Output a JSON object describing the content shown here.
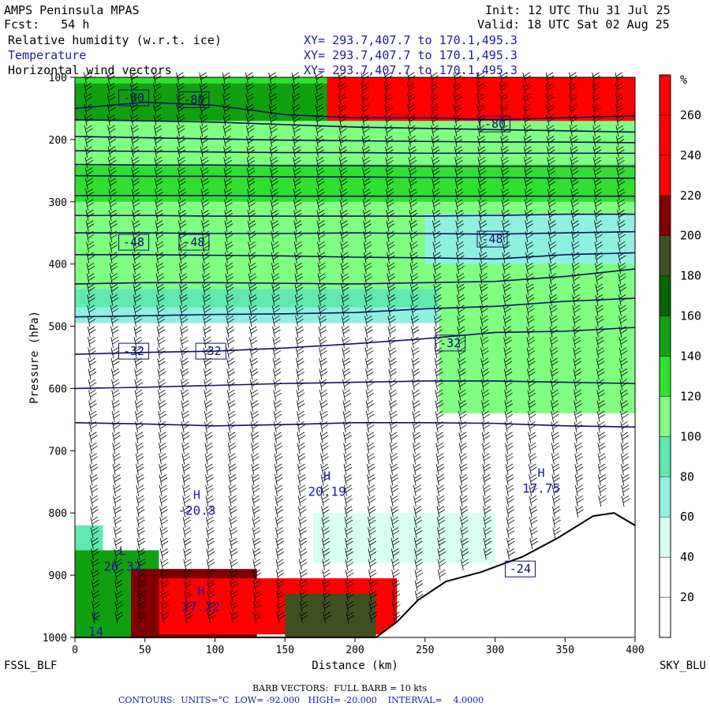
{
  "header": {
    "model": "AMPS Peninsula MPAS",
    "forecast": "Fcst:   54 h",
    "init": "Init: 12 UTC Thu 31 Jul 25",
    "valid": "Valid: 18 UTC Sat 02 Aug 25",
    "fields": [
      {
        "name": "Relative humidity (w.r.t. ice)",
        "xy": "XY= 293.7,407.7 to 170.1,495.3"
      },
      {
        "name": "Temperature",
        "xy": "XY= 293.7,407.7 to 170.1,495.3"
      },
      {
        "name": "Horizontal wind vectors",
        "xy": "XY= 293.7,407.7 to 170.1,495.3"
      }
    ]
  },
  "chart_data": {
    "type": "cross-section",
    "xlabel": "Distance (km)",
    "ylabel": "Pressure (hPa)",
    "xlim": [
      0,
      400
    ],
    "ylim": [
      1000,
      100
    ],
    "x_ticks": [
      0,
      50,
      100,
      150,
      200,
      250,
      300,
      350,
      400
    ],
    "y_ticks": [
      100,
      200,
      300,
      400,
      500,
      600,
      700,
      800,
      900,
      1000
    ],
    "left_endpoint": "FSSL_BLF",
    "right_endpoint": "SKY_BLU",
    "colorbar": {
      "unit": "%",
      "ticks": [
        20,
        40,
        60,
        80,
        100,
        120,
        140,
        160,
        180,
        200,
        220,
        240,
        260
      ],
      "colors": [
        "#ffffff",
        "#ffffff",
        "#d8fff0",
        "#90f0e0",
        "#60e8b0",
        "#80ff80",
        "#30e030",
        "#10a010",
        "#006400",
        "#405020",
        "#800000",
        "#ff0000",
        "#ff0000",
        "#ff0000"
      ]
    },
    "temperature_contours": [
      {
        "value": -80,
        "pressures": [
          150,
          140,
          145,
          160,
          165,
          165,
          168,
          165,
          162
        ]
      },
      {
        "value": -76,
        "pressures": [
          168,
          170,
          172,
          176,
          180,
          182,
          184,
          186,
          188
        ]
      },
      {
        "value": -72,
        "pressures": [
          195,
          197,
          199,
          201,
          202,
          203,
          204,
          204,
          205
        ]
      },
      {
        "value": -68,
        "pressures": [
          218,
          219,
          220,
          221,
          221,
          222,
          222,
          222,
          222
        ]
      },
      {
        "value": -64,
        "pressures": [
          240,
          241,
          241,
          242,
          242,
          243,
          243,
          243,
          243
        ]
      },
      {
        "value": -60,
        "pressures": [
          258,
          259,
          259,
          260,
          260,
          261,
          261,
          262,
          262
        ]
      },
      {
        "value": -56,
        "pressures": [
          290,
          290,
          290,
          291,
          291,
          291,
          291,
          291,
          291
        ]
      },
      {
        "value": -52,
        "pressures": [
          322,
          322,
          323,
          323,
          323,
          323,
          322,
          320,
          320
        ]
      },
      {
        "value": -48,
        "pressures": [
          350,
          350,
          351,
          351,
          350,
          351,
          352,
          350,
          348
        ]
      },
      {
        "value": -44,
        "pressures": [
          385,
          385,
          386,
          387,
          389,
          390,
          392,
          385,
          382
        ]
      },
      {
        "value": -40,
        "pressures": [
          432,
          430,
          430,
          431,
          432,
          430,
          428,
          420,
          408
        ]
      },
      {
        "value": -36,
        "pressures": [
          485,
          483,
          481,
          480,
          478,
          472,
          468,
          460,
          455
        ]
      },
      {
        "value": -32,
        "pressures": [
          545,
          542,
          540,
          535,
          528,
          520,
          510,
          508,
          502
        ]
      },
      {
        "value": -28,
        "pressures": [
          600,
          598,
          595,
          592,
          590,
          588,
          588,
          590,
          592
        ]
      },
      {
        "value": -24,
        "pressures": [
          655,
          657,
          660,
          658,
          655,
          655,
          656,
          660,
          662
        ]
      }
    ],
    "contour_labels": [
      {
        "text": "-80",
        "x": 42,
        "p": 133
      },
      {
        "text": "-80",
        "x": 85,
        "p": 136
      },
      {
        "text": "-80",
        "x": 300,
        "p": 175
      },
      {
        "text": "-48",
        "x": 42,
        "p": 365
      },
      {
        "text": "-48",
        "x": 85,
        "p": 365
      },
      {
        "text": "-48",
        "x": 298,
        "p": 360
      },
      {
        "text": "-32",
        "x": 42,
        "p": 540
      },
      {
        "text": "-32",
        "x": 97,
        "p": 540
      },
      {
        "text": "-32",
        "x": 268,
        "p": 527
      },
      {
        "text": "-24",
        "x": 318,
        "p": 890
      }
    ],
    "extrema": [
      {
        "kind": "L",
        "value": "26.32",
        "x": 34,
        "p": 880
      },
      {
        "kind": "H",
        "value": "-20.3",
        "x": 87,
        "p": 790
      },
      {
        "kind": "H",
        "value": "20.19",
        "x": 180,
        "p": 760
      },
      {
        "kind": "H",
        "value": "17.75",
        "x": 333,
        "p": 755
      },
      {
        "kind": "H",
        "value": "27.22",
        "x": 90,
        "p": 945
      },
      {
        "kind": "L",
        "value": "14",
        "x": 15,
        "p": 985
      }
    ],
    "terrain_pressure": [
      {
        "x": 0,
        "p": 1000
      },
      {
        "x": 40,
        "p": 1000
      },
      {
        "x": 150,
        "p": 1000
      },
      {
        "x": 215,
        "p": 1000
      },
      {
        "x": 230,
        "p": 975
      },
      {
        "x": 245,
        "p": 940
      },
      {
        "x": 265,
        "p": 910
      },
      {
        "x": 290,
        "p": 895
      },
      {
        "x": 320,
        "p": 870
      },
      {
        "x": 345,
        "p": 840
      },
      {
        "x": 370,
        "p": 805
      },
      {
        "x": 385,
        "p": 800
      },
      {
        "x": 400,
        "p": 820
      }
    ]
  },
  "footer": {
    "barb_note": "BARB VECTORS:  FULL BARB = 10 kts",
    "contours_label": "CONTOURS:",
    "units": "UNITS=°C",
    "low": "LOW= -92.000",
    "high": "HIGH= -20.000",
    "interval": "INTERVAL=    4.0000"
  }
}
